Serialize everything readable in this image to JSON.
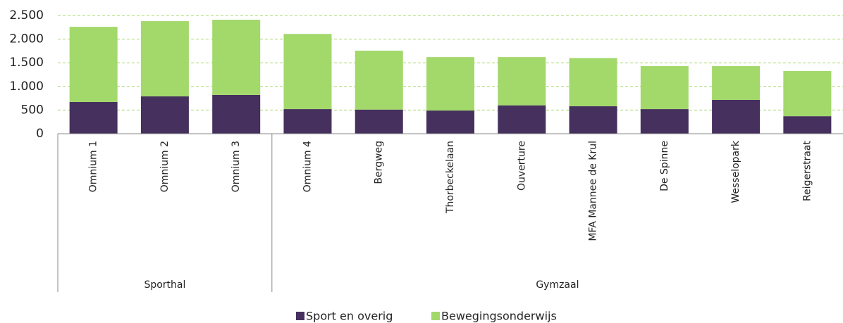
{
  "chart_data": {
    "type": "stacked-bar",
    "categories": [
      "Omnium 1",
      "Omnium 2",
      "Omnium 3",
      "Omnium 4",
      "Bergweg",
      "Thorbeckelaan",
      "Ouverture",
      "MFA Mannee de Krul",
      "De Spinne",
      "Wesselopark",
      "Reigerstraat"
    ],
    "groups": [
      {
        "label": "Sporthal",
        "size": 3
      },
      {
        "label": "Gymzaal",
        "size": 8
      }
    ],
    "series": [
      {
        "name": "Sport en overig",
        "color": "#45305e",
        "values": [
          670,
          790,
          820,
          520,
          510,
          490,
          600,
          580,
          520,
          715,
          370
        ]
      },
      {
        "name": "Bewegingsonderwijs",
        "color": "#a3d86b",
        "values": [
          1590,
          1590,
          1590,
          1590,
          1245,
          1130,
          1020,
          1020,
          910,
          715,
          955
        ]
      }
    ],
    "ylim": [
      0,
      2500
    ],
    "yticks": [
      0,
      500,
      {
        "value": 1000,
        "label": "1.000"
      },
      {
        "value": 1500,
        "label": "1.500"
      },
      {
        "value": 2000,
        "label": "2.000"
      },
      {
        "value": 2500,
        "label": "2.500"
      }
    ],
    "grid": true,
    "legend": "bottom"
  }
}
